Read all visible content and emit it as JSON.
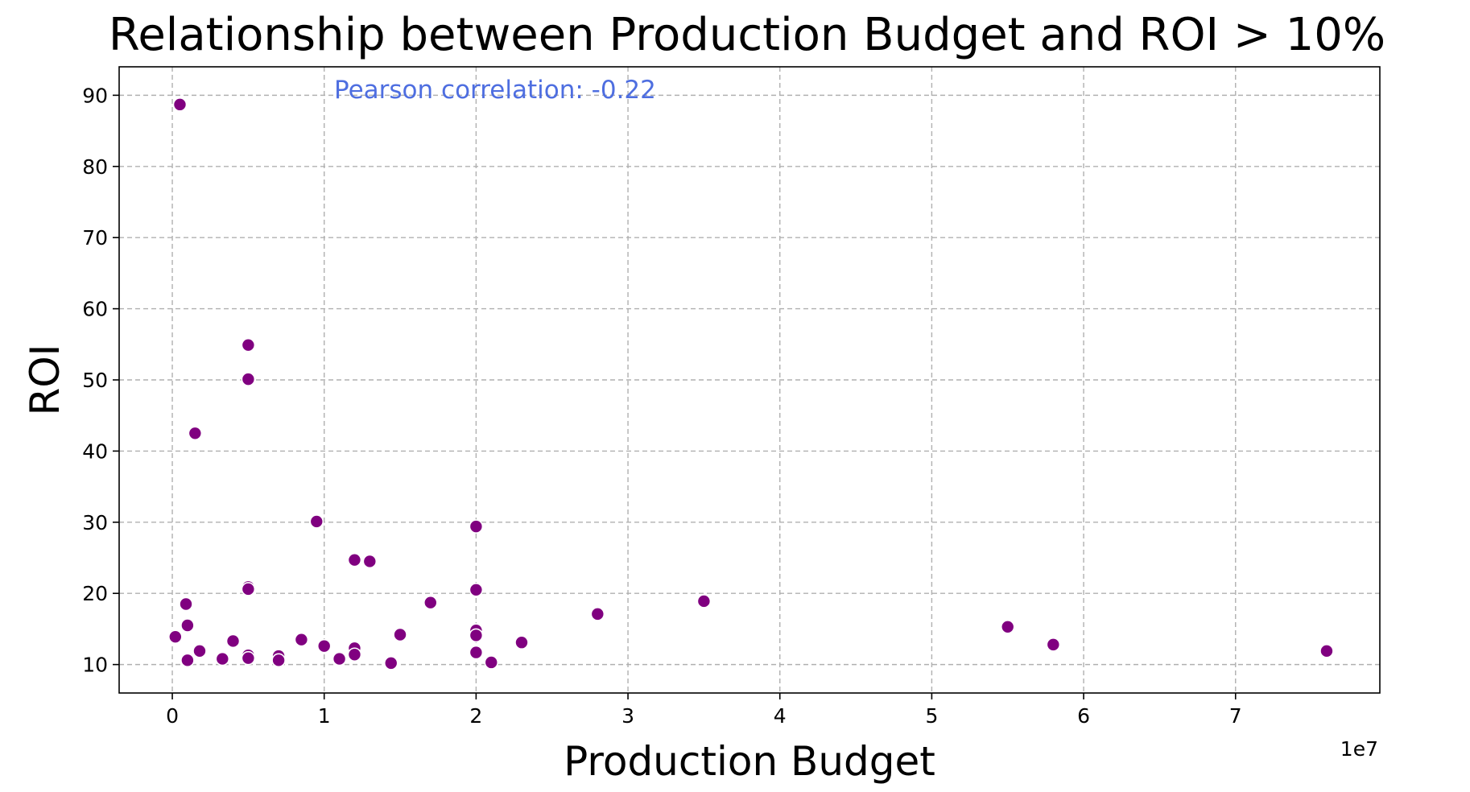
{
  "chart_data": {
    "type": "scatter",
    "title": "Relationship between Production Budget and ROI > 10%",
    "xlabel": "Production Budget",
    "ylabel": "ROI",
    "x_offset_label": "1e7",
    "annotation": "Pearson correlation: -0.22",
    "xlim": [
      -3500000,
      79500000
    ],
    "ylim": [
      6,
      94
    ],
    "x_ticks": [
      {
        "value": 0,
        "label": "0"
      },
      {
        "value": 10000000,
        "label": "1"
      },
      {
        "value": 20000000,
        "label": "2"
      },
      {
        "value": 30000000,
        "label": "3"
      },
      {
        "value": 40000000,
        "label": "4"
      },
      {
        "value": 50000000,
        "label": "5"
      },
      {
        "value": 60000000,
        "label": "6"
      },
      {
        "value": 70000000,
        "label": "7"
      }
    ],
    "y_ticks": [
      {
        "value": 10,
        "label": "10"
      },
      {
        "value": 20,
        "label": "20"
      },
      {
        "value": 30,
        "label": "30"
      },
      {
        "value": 40,
        "label": "40"
      },
      {
        "value": 50,
        "label": "50"
      },
      {
        "value": 60,
        "label": "60"
      },
      {
        "value": 70,
        "label": "70"
      },
      {
        "value": 80,
        "label": "80"
      },
      {
        "value": 90,
        "label": "90"
      }
    ],
    "grid": true,
    "point_color": "#800080",
    "annotation_color": "#4e6ee0",
    "points": [
      {
        "x": 500000,
        "y": 88.7
      },
      {
        "x": 200000,
        "y": 13.9
      },
      {
        "x": 900000,
        "y": 18.5
      },
      {
        "x": 1000000,
        "y": 15.5
      },
      {
        "x": 1000000,
        "y": 10.6
      },
      {
        "x": 1500000,
        "y": 42.5
      },
      {
        "x": 1800000,
        "y": 11.9
      },
      {
        "x": 3300000,
        "y": 10.8
      },
      {
        "x": 4000000,
        "y": 13.3
      },
      {
        "x": 5000000,
        "y": 54.9
      },
      {
        "x": 5000000,
        "y": 50.1
      },
      {
        "x": 5000000,
        "y": 20.9
      },
      {
        "x": 5000000,
        "y": 20.6
      },
      {
        "x": 5000000,
        "y": 11.3
      },
      {
        "x": 5000000,
        "y": 10.9
      },
      {
        "x": 7000000,
        "y": 11.2
      },
      {
        "x": 7000000,
        "y": 10.6
      },
      {
        "x": 8500000,
        "y": 13.5
      },
      {
        "x": 9500000,
        "y": 30.1
      },
      {
        "x": 10000000,
        "y": 12.6
      },
      {
        "x": 11000000,
        "y": 10.8
      },
      {
        "x": 12000000,
        "y": 24.7
      },
      {
        "x": 12000000,
        "y": 12.3
      },
      {
        "x": 12000000,
        "y": 11.4
      },
      {
        "x": 13000000,
        "y": 24.5
      },
      {
        "x": 14400000,
        "y": 10.2
      },
      {
        "x": 15000000,
        "y": 14.2
      },
      {
        "x": 17000000,
        "y": 18.7
      },
      {
        "x": 20000000,
        "y": 29.4
      },
      {
        "x": 20000000,
        "y": 20.5
      },
      {
        "x": 20000000,
        "y": 14.8
      },
      {
        "x": 20000000,
        "y": 14.1
      },
      {
        "x": 20000000,
        "y": 11.7
      },
      {
        "x": 21000000,
        "y": 10.3
      },
      {
        "x": 23000000,
        "y": 13.1
      },
      {
        "x": 28000000,
        "y": 17.1
      },
      {
        "x": 35000000,
        "y": 18.9
      },
      {
        "x": 55000000,
        "y": 15.3
      },
      {
        "x": 58000000,
        "y": 12.8
      },
      {
        "x": 76000000,
        "y": 11.9
      }
    ]
  }
}
